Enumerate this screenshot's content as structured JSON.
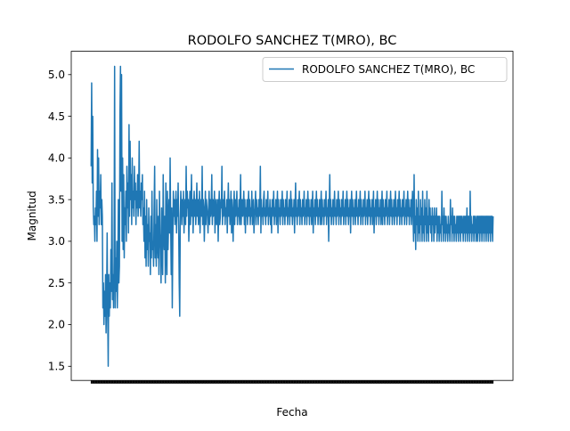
{
  "chart_data": {
    "type": "line",
    "title": "RODOLFO SANCHEZ T(MRO), BC",
    "xlabel": "Fecha",
    "ylabel": "Magnitud",
    "ylim": [
      1.33,
      5.28
    ],
    "yticks": [
      "1.5",
      "2.0",
      "2.5",
      "3.0",
      "3.5",
      "4.0",
      "4.5",
      "5.0"
    ],
    "grid": false,
    "legend_position": "upper right",
    "series": [
      {
        "name": "RODOLFO SANCHEZ T(MRO), BC",
        "color": "#1f77b4",
        "values": [
          3.9,
          4.9,
          3.7,
          4.5,
          3.4,
          3.2,
          3.3,
          3.0,
          3.4,
          3.2,
          3.6,
          3.0,
          4.1,
          3.3,
          4.0,
          3.2,
          3.6,
          3.4,
          3.8,
          3.2,
          3.5,
          3.3,
          2.2,
          2.5,
          2.0,
          2.4,
          2.1,
          2.6,
          1.9,
          2.3,
          3.1,
          2.2,
          1.5,
          2.6,
          2.1,
          2.5,
          2.2,
          2.9,
          2.4,
          3.7,
          2.3,
          2.6,
          2.2,
          2.8,
          5.1,
          2.2,
          2.8,
          2.4,
          3.0,
          2.2,
          2.6,
          3.5,
          2.5,
          2.7,
          4.5,
          5.1,
          3.6,
          5.0,
          3.0,
          4.0,
          2.9,
          3.8,
          2.8,
          3.4,
          3.2,
          3.6,
          3.0,
          3.9,
          3.4,
          3.7,
          3.1,
          4.4,
          3.3,
          4.2,
          3.5,
          3.8,
          3.2,
          4.0,
          3.4,
          3.6,
          3.3,
          3.9,
          3.5,
          3.7,
          3.2,
          3.6,
          3.4,
          3.8,
          3.3,
          3.5,
          4.2,
          3.4,
          3.6,
          3.3,
          3.7,
          3.5,
          3.8,
          3.2,
          3.4,
          3.0,
          3.6,
          2.8,
          3.3,
          2.7,
          3.5,
          2.9,
          3.2,
          2.7,
          3.4,
          3.0,
          3.1,
          2.6,
          3.3,
          2.8,
          3.6,
          2.9,
          3.0,
          2.7,
          3.4,
          3.9,
          2.8,
          3.2,
          2.7,
          3.5,
          3.0,
          2.8,
          3.3,
          2.6,
          3.6,
          3.1,
          2.9,
          2.5,
          3.4,
          3.0,
          2.6,
          3.8,
          3.1,
          2.9,
          3.3,
          2.5,
          3.7,
          3.0,
          2.6,
          3.6,
          2.9,
          3.2,
          3.5,
          3.1,
          4.0,
          3.2,
          2.6,
          3.4,
          2.2,
          3.0,
          3.6,
          3.3,
          3.5,
          3.2,
          3.4,
          3.6,
          3.1,
          3.5,
          3.3,
          3.7,
          3.2,
          2.5,
          2.1,
          3.3,
          3.6,
          3.4,
          3.2,
          3.5,
          3.3,
          3.6,
          3.1,
          3.4,
          3.5,
          3.2,
          3.9,
          3.3,
          3.6,
          3.4,
          3.5,
          3.0,
          3.3,
          3.6,
          3.2,
          3.4,
          3.8,
          3.3,
          3.5,
          3.1,
          3.4,
          3.6,
          3.3,
          3.5,
          3.2,
          3.4,
          3.7,
          3.3,
          3.5,
          3.2,
          3.4,
          3.6,
          3.1,
          3.4,
          3.5,
          3.3,
          3.9,
          3.2,
          3.5,
          3.4,
          3.0,
          3.3,
          3.6,
          3.2,
          3.5,
          3.4,
          3.3,
          3.1,
          3.4,
          3.6,
          3.2,
          3.5,
          3.3,
          3.4,
          3.8,
          3.2,
          3.5,
          3.3,
          3.4,
          3.6,
          3.1,
          3.4,
          3.5,
          3.2,
          3.3,
          3.5,
          3.0,
          3.4,
          3.6,
          3.2,
          3.3,
          3.5,
          3.4,
          3.9,
          3.2,
          3.5,
          3.3,
          3.4,
          3.6,
          3.2,
          3.4,
          3.3,
          3.5,
          3.1,
          3.4,
          3.7,
          3.3,
          3.5,
          3.2,
          3.4,
          3.6,
          3.1,
          3.5,
          3.3,
          3.0,
          3.4,
          3.6,
          3.2,
          3.5,
          3.3,
          3.4,
          3.6,
          3.2,
          3.4,
          3.3,
          3.5,
          3.2,
          3.4,
          3.8,
          3.2,
          3.4,
          3.5,
          3.3,
          3.4,
          3.6,
          3.2,
          3.5,
          3.1,
          3.4,
          3.3,
          3.5,
          3.2,
          3.4,
          3.6,
          3.3,
          3.5,
          3.2,
          3.4,
          3.3,
          3.6,
          3.2,
          3.4,
          3.5,
          3.1,
          3.3,
          3.4,
          3.6,
          3.2,
          3.5,
          3.3,
          3.4,
          3.2,
          3.5,
          3.3,
          3.4,
          3.9,
          3.1,
          3.5,
          3.3,
          3.4,
          3.2,
          3.5,
          3.6,
          3.3,
          3.4,
          3.2,
          3.5,
          3.3,
          3.4,
          3.6,
          3.2,
          3.4,
          3.3,
          3.5,
          3.2,
          3.4,
          3.1,
          3.5,
          3.3,
          3.4,
          3.6,
          3.2,
          3.4,
          3.3,
          3.5,
          3.2,
          3.4,
          3.6,
          3.1,
          3.5,
          3.3,
          3.4,
          3.2,
          3.5,
          3.3,
          3.4,
          3.6,
          3.2,
          3.5,
          3.3,
          3.4,
          3.2,
          3.5,
          3.3,
          3.4,
          3.6,
          3.2,
          3.4,
          3.3,
          3.5,
          3.2,
          3.4,
          3.6,
          3.3,
          3.5,
          3.2,
          3.4,
          3.3,
          3.5,
          3.1,
          3.4,
          3.7,
          3.3,
          3.4,
          3.2,
          3.5,
          3.3,
          3.4,
          3.6,
          3.2,
          3.5,
          3.3,
          3.4,
          3.2,
          3.5,
          3.3,
          3.4,
          3.6,
          3.2,
          3.4,
          3.3,
          3.5,
          3.2,
          3.4,
          3.6,
          3.3,
          3.5,
          3.2,
          3.4,
          3.3,
          3.5,
          3.2,
          3.4,
          3.6,
          3.1,
          3.4,
          3.3,
          3.5,
          3.2,
          3.4,
          3.6,
          3.3,
          3.5,
          3.2,
          3.4,
          3.3,
          3.5,
          3.2,
          3.4,
          3.6,
          3.2,
          3.5,
          3.3,
          3.4,
          3.2,
          3.5,
          3.3,
          3.4,
          3.6,
          3.2,
          3.4,
          3.3,
          3.5,
          3.0,
          3.4,
          3.8,
          3.3,
          3.5,
          3.2,
          3.4,
          3.3,
          3.5,
          3.2,
          3.4,
          3.6,
          3.3,
          3.4,
          3.2,
          3.5,
          3.3,
          3.4,
          3.6,
          3.2,
          3.5,
          3.3,
          3.4,
          3.2,
          3.5,
          3.3,
          3.4,
          3.6,
          3.2,
          3.4,
          3.3,
          3.5,
          3.2,
          3.4,
          3.6,
          3.3,
          3.5,
          3.2,
          3.4,
          3.3,
          3.5,
          3.1,
          3.4,
          3.6,
          3.3,
          3.5,
          3.2,
          3.4,
          3.3,
          3.5,
          3.2,
          3.4,
          3.6,
          3.3,
          3.4,
          3.2,
          3.5,
          3.3,
          3.4,
          3.6,
          3.2,
          3.5,
          3.3,
          3.4,
          3.2,
          3.5,
          3.3,
          3.4,
          3.6,
          3.2,
          3.4,
          3.3,
          3.5,
          3.2,
          3.4,
          3.6,
          3.3,
          3.5,
          3.2,
          3.4,
          3.3,
          3.5,
          3.2,
          3.4,
          3.6,
          3.1,
          3.4,
          3.3,
          3.5,
          3.2,
          3.4,
          3.6,
          3.3,
          3.5,
          3.2,
          3.4,
          3.3,
          3.5,
          3.2,
          3.4,
          3.6,
          3.2,
          3.5,
          3.3,
          3.4,
          3.2,
          3.5,
          3.3,
          3.4,
          3.6,
          3.2,
          3.4,
          3.3,
          3.5,
          3.2,
          3.4,
          3.6,
          3.3,
          3.5,
          3.2,
          3.4,
          3.3,
          3.5,
          3.2,
          3.4,
          3.6,
          3.3,
          3.4,
          3.2,
          3.5,
          3.3,
          3.4,
          3.6,
          3.2,
          3.5,
          3.3,
          3.4,
          3.2,
          3.5,
          3.3,
          3.4,
          3.6,
          3.2,
          3.4,
          3.3,
          3.5,
          3.2,
          3.4,
          3.6,
          3.3,
          3.5,
          3.2,
          3.4,
          3.3,
          3.5,
          3.2,
          3.4,
          3.6,
          3.3,
          3.0,
          3.8,
          3.1,
          3.3,
          2.9,
          3.5,
          3.2,
          3.4,
          3.0,
          3.6,
          3.1,
          3.3,
          3.0,
          3.5,
          3.2,
          3.4,
          3.0,
          3.6,
          3.1,
          3.3,
          3.0,
          3.5,
          3.2,
          3.4,
          3.0,
          3.6,
          3.1,
          3.3,
          3.0,
          3.5,
          3.2,
          3.4,
          3.1,
          3.3,
          3.0,
          3.4,
          3.2,
          3.3,
          3.0,
          3.4,
          3.1,
          3.3,
          3.2,
          3.4,
          3.0,
          3.3,
          3.1,
          3.3,
          3.0,
          3.3,
          3.1,
          3.2,
          3.0,
          3.6,
          3.2,
          3.3,
          3.0,
          3.4,
          3.1,
          3.3,
          3.0,
          3.3,
          3.1,
          3.2,
          3.0,
          3.3,
          3.1,
          3.2,
          3.0,
          3.5,
          3.2,
          3.3,
          3.0,
          3.4,
          3.1,
          3.3,
          3.0,
          3.3,
          3.1,
          3.2,
          3.0,
          3.3,
          3.1,
          3.3,
          3.0,
          3.3,
          3.1,
          3.3,
          3.0,
          3.3,
          3.1,
          3.3,
          3.2,
          3.0,
          3.3,
          3.1,
          3.3,
          3.0,
          3.3,
          3.1,
          3.4,
          3.0,
          3.3,
          3.1,
          3.3,
          3.0,
          3.6,
          3.1,
          3.3,
          3.0,
          3.2,
          3.1,
          3.3,
          3.0,
          3.3,
          3.1,
          3.3,
          3.0,
          3.2,
          3.3,
          3.0,
          3.3,
          3.1,
          3.3,
          3.0,
          3.3,
          3.1,
          3.3,
          3.0,
          3.3,
          3.1,
          3.3,
          3.0,
          3.3,
          3.1,
          3.3,
          3.0,
          3.3,
          3.1,
          3.3,
          3.0,
          3.3,
          3.1,
          3.3,
          3.0,
          3.3,
          3.1,
          3.3,
          3.0,
          3.3
        ]
      }
    ]
  }
}
